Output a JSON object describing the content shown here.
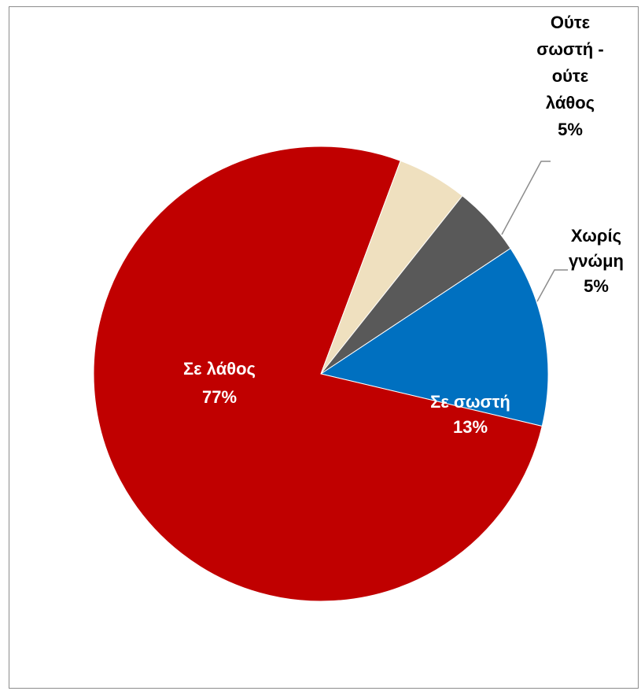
{
  "chart_data": {
    "type": "pie",
    "title": "",
    "slices": [
      {
        "label": "Σε σωστή",
        "value": 13,
        "display": "13%",
        "color": "#0070c0",
        "label_color": "#ffffff"
      },
      {
        "label": "Σε λάθος",
        "value": 77,
        "display": "77%",
        "color": "#c00000",
        "label_color": "#ffffff"
      },
      {
        "label": "Ούτε σωστή - ούτε λάθος",
        "value": 5,
        "display": "5%",
        "color": "#efe0bf",
        "label_color": "#000000"
      },
      {
        "label": "Χωρίς γνώμη",
        "value": 5,
        "display": "5%",
        "color": "#595959",
        "label_color": "#000000"
      }
    ],
    "label_lines": {
      "s0": [
        "Σε σωστή"
      ],
      "s1": [
        "Σε λάθος"
      ],
      "s2": [
        "Ούτε",
        "σωστή -",
        "ούτε",
        "λάθος"
      ],
      "s3": [
        "Χωρίς",
        "γνώμη"
      ]
    },
    "legend": "none"
  }
}
